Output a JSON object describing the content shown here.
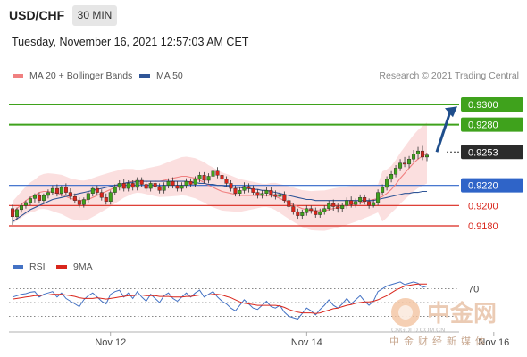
{
  "header": {
    "symbol": "USD/CHF",
    "timeframe": "30 MIN",
    "datetime": "Tuesday, November 16, 2021 12:57:03 AM CET"
  },
  "legend": {
    "items": [
      {
        "label": "MA 20 + Bollinger Bands",
        "color": "#f08080"
      },
      {
        "label": "MA 50",
        "color": "#2f5597"
      }
    ],
    "credit": "Research © 2021 Trading Central"
  },
  "rsi_legend": {
    "items": [
      {
        "label": "RSI",
        "color": "#4472c4"
      },
      {
        "label": "9MA",
        "color": "#d9261c"
      }
    ]
  },
  "watermark": {
    "big": "中金网",
    "url": "CNGOLD.COM.CN",
    "tagline": "中金财经新媒体"
  },
  "chart_data": [
    {
      "type": "candlestick",
      "ylim": [
        0.9165,
        0.9315
      ],
      "x_ticks": [
        {
          "index": 22,
          "label": "Nov 12"
        },
        {
          "index": 66,
          "label": "Nov 14"
        },
        {
          "index": 108,
          "label": "Nov 16"
        }
      ],
      "series": [
        {
          "name": "MA 20",
          "color": "#f08080"
        },
        {
          "name": "MA 50",
          "color": "#2f5597"
        }
      ],
      "ma20": [
        0.9193,
        0.9197,
        0.9201,
        0.9205,
        0.9208,
        0.921,
        0.9213,
        0.9214,
        0.9214,
        0.9213,
        0.9212,
        0.9211,
        0.9209,
        0.9207,
        0.9206,
        0.9205,
        0.9205,
        0.9206,
        0.9208,
        0.921,
        0.9212,
        0.9214,
        0.9216,
        0.9218,
        0.922,
        0.9222,
        0.9223,
        0.9224,
        0.9224,
        0.9224,
        0.9224,
        0.9224,
        0.9224,
        0.9224,
        0.9225,
        0.9226,
        0.9227,
        0.9228,
        0.9229,
        0.9229,
        0.9228,
        0.9227,
        0.9225,
        0.9223,
        0.922,
        0.9218,
        0.9216,
        0.9214,
        0.9213,
        0.9212,
        0.9211,
        0.921,
        0.921,
        0.921,
        0.921,
        0.921,
        0.921,
        0.921,
        0.921,
        0.9209,
        0.9207,
        0.9205,
        0.9203,
        0.9201,
        0.9199,
        0.9197,
        0.9196,
        0.9195,
        0.9195,
        0.9195,
        0.9195,
        0.9196,
        0.9197,
        0.9198,
        0.9199,
        0.92,
        0.9201,
        0.9202,
        0.9203,
        0.9204,
        0.9205,
        0.9206,
        0.9207,
        0.9209,
        0.9212,
        0.9216,
        0.9221,
        0.9227,
        0.9232,
        0.9237,
        0.9242,
        0.9246,
        0.9249,
        0.9252
      ],
      "ma50": [
        0.9184,
        0.9187,
        0.919,
        0.9193,
        0.9196,
        0.9198,
        0.92,
        0.9202,
        0.9204,
        0.9206,
        0.9207,
        0.9208,
        0.9209,
        0.921,
        0.9211,
        0.9212,
        0.9213,
        0.9214,
        0.9215,
        0.9216,
        0.9217,
        0.9218,
        0.9219,
        0.922,
        0.9221,
        0.9222,
        0.9223,
        0.9223,
        0.9224,
        0.9224,
        0.9224,
        0.9224,
        0.9224,
        0.9224,
        0.9224,
        0.9224,
        0.9224,
        0.9224,
        0.9224,
        0.9224,
        0.9223,
        0.9223,
        0.9222,
        0.9222,
        0.9221,
        0.9221,
        0.922,
        0.922,
        0.9219,
        0.9219,
        0.9218,
        0.9218,
        0.9217,
        0.9217,
        0.9216,
        0.9216,
        0.9215,
        0.9215,
        0.9214,
        0.9213,
        0.9212,
        0.9211,
        0.921,
        0.9209,
        0.9208,
        0.9207,
        0.9206,
        0.9206,
        0.9205,
        0.9205,
        0.9205,
        0.9205,
        0.9205,
        0.9205,
        0.9205,
        0.9205,
        0.9205,
        0.9205,
        0.9205,
        0.9205,
        0.9205,
        0.9205,
        0.9206,
        0.9207,
        0.9208,
        0.9209,
        0.921,
        0.9211,
        0.9212,
        0.9212,
        0.9213,
        0.9213,
        0.9214,
        0.9214
      ],
      "candles": {
        "open": [
          0.9197,
          0.9189,
          0.9196,
          0.92,
          0.9203,
          0.9207,
          0.921,
          0.9205,
          0.921,
          0.9213,
          0.9217,
          0.9212,
          0.9218,
          0.9213,
          0.9209,
          0.9205,
          0.9201,
          0.9206,
          0.9212,
          0.9217,
          0.9213,
          0.9208,
          0.9204,
          0.9213,
          0.9218,
          0.9222,
          0.9217,
          0.9222,
          0.9218,
          0.9225,
          0.9221,
          0.9217,
          0.9222,
          0.9219,
          0.9215,
          0.922,
          0.9224,
          0.922,
          0.9217,
          0.922,
          0.9224,
          0.9221,
          0.9226,
          0.923,
          0.9225,
          0.9229,
          0.9234,
          0.923,
          0.9226,
          0.9222,
          0.9217,
          0.9212,
          0.9215,
          0.9219,
          0.9217,
          0.9213,
          0.921,
          0.9212,
          0.9215,
          0.9211,
          0.9209,
          0.9211,
          0.9205,
          0.9199,
          0.9194,
          0.919,
          0.9193,
          0.9197,
          0.9195,
          0.9191,
          0.9194,
          0.9197,
          0.9202,
          0.9199,
          0.9197,
          0.92,
          0.9205,
          0.9201,
          0.9204,
          0.9208,
          0.9204,
          0.92,
          0.9203,
          0.9213,
          0.9218,
          0.9226,
          0.9231,
          0.9237,
          0.9242,
          0.9241,
          0.9246,
          0.9251,
          0.9254,
          0.9248
        ],
        "high": [
          0.9201,
          0.9198,
          0.9202,
          0.9205,
          0.9209,
          0.9212,
          0.9213,
          0.9212,
          0.9216,
          0.922,
          0.9221,
          0.922,
          0.9222,
          0.9217,
          0.9212,
          0.9208,
          0.9208,
          0.9214,
          0.9219,
          0.922,
          0.9216,
          0.9212,
          0.9215,
          0.9221,
          0.9225,
          0.9226,
          0.9225,
          0.9225,
          0.9228,
          0.9228,
          0.9224,
          0.9224,
          0.9225,
          0.9222,
          0.9223,
          0.9227,
          0.9228,
          0.9224,
          0.9223,
          0.9227,
          0.9227,
          0.9229,
          0.9233,
          0.9233,
          0.9232,
          0.9237,
          0.9238,
          0.9234,
          0.9229,
          0.9225,
          0.922,
          0.9218,
          0.9223,
          0.9222,
          0.922,
          0.9216,
          0.9215,
          0.9218,
          0.9218,
          0.9215,
          0.9215,
          0.9214,
          0.9208,
          0.9202,
          0.9197,
          0.9196,
          0.92,
          0.92,
          0.9198,
          0.9197,
          0.92,
          0.9205,
          0.9206,
          0.9202,
          0.9203,
          0.9208,
          0.9209,
          0.9207,
          0.9211,
          0.9211,
          0.9207,
          0.9206,
          0.9216,
          0.9221,
          0.9229,
          0.9234,
          0.924,
          0.9246,
          0.9248,
          0.9249,
          0.9255,
          0.9258,
          0.9259,
          0.9252
        ],
        "low": [
          0.9181,
          0.9186,
          0.9193,
          0.9197,
          0.92,
          0.9203,
          0.9202,
          0.9202,
          0.9207,
          0.921,
          0.9209,
          0.9209,
          0.921,
          0.9206,
          0.9202,
          0.9198,
          0.9198,
          0.9203,
          0.9209,
          0.921,
          0.9205,
          0.9201,
          0.9201,
          0.921,
          0.9215,
          0.9214,
          0.9214,
          0.9215,
          0.9215,
          0.9218,
          0.9214,
          0.9214,
          0.9216,
          0.9212,
          0.9212,
          0.9217,
          0.9217,
          0.9214,
          0.9214,
          0.9217,
          0.9218,
          0.9218,
          0.9223,
          0.9222,
          0.9222,
          0.9226,
          0.9227,
          0.9223,
          0.9219,
          0.9214,
          0.9209,
          0.9209,
          0.9212,
          0.9213,
          0.921,
          0.9207,
          0.9207,
          0.9209,
          0.9208,
          0.9206,
          0.9205,
          0.9202,
          0.9196,
          0.9191,
          0.9187,
          0.9187,
          0.919,
          0.9192,
          0.9188,
          0.9188,
          0.9191,
          0.9195,
          0.9195,
          0.9193,
          0.9194,
          0.9197,
          0.9198,
          0.9198,
          0.9201,
          0.9201,
          0.9197,
          0.9198,
          0.92,
          0.921,
          0.9215,
          0.9223,
          0.9228,
          0.9234,
          0.9238,
          0.9237,
          0.9243,
          0.9246,
          0.9245,
          0.9244
        ],
        "close": [
          0.9189,
          0.9196,
          0.92,
          0.9203,
          0.9207,
          0.921,
          0.9205,
          0.921,
          0.9213,
          0.9217,
          0.9212,
          0.9218,
          0.9213,
          0.9209,
          0.9205,
          0.9201,
          0.9206,
          0.9212,
          0.9217,
          0.9213,
          0.9208,
          0.9204,
          0.9213,
          0.9218,
          0.9222,
          0.9217,
          0.9222,
          0.9218,
          0.9225,
          0.9221,
          0.9217,
          0.9222,
          0.9219,
          0.9215,
          0.922,
          0.9224,
          0.922,
          0.9217,
          0.922,
          0.9224,
          0.9221,
          0.9226,
          0.923,
          0.9225,
          0.9229,
          0.9234,
          0.923,
          0.9226,
          0.9222,
          0.9217,
          0.9212,
          0.9215,
          0.9219,
          0.9217,
          0.9213,
          0.921,
          0.9212,
          0.9215,
          0.9211,
          0.9209,
          0.9211,
          0.9205,
          0.9199,
          0.9194,
          0.919,
          0.9193,
          0.9197,
          0.9195,
          0.9191,
          0.9194,
          0.9197,
          0.9202,
          0.9199,
          0.9197,
          0.92,
          0.9205,
          0.9201,
          0.9204,
          0.9208,
          0.9204,
          0.92,
          0.9203,
          0.9213,
          0.9218,
          0.9226,
          0.9231,
          0.9237,
          0.9242,
          0.9241,
          0.9246,
          0.9251,
          0.9254,
          0.9248,
          0.925
        ]
      },
      "levels": [
        {
          "value": 0.93,
          "label": "0.9300",
          "kind": "resistance",
          "color": "#3fa21c"
        },
        {
          "value": 0.928,
          "label": "0.9280",
          "kind": "resistance",
          "color": "#3fa21c"
        },
        {
          "value": 0.9253,
          "label": "0.9253",
          "kind": "last",
          "color": "#2b2b2b"
        },
        {
          "value": 0.922,
          "label": "0.9220",
          "kind": "pivot",
          "color": "#2f64c8"
        },
        {
          "value": 0.92,
          "label": "0.9200",
          "kind": "support",
          "color": "#d9261c"
        },
        {
          "value": 0.918,
          "label": "0.9180",
          "kind": "support",
          "color": "#d9261c"
        }
      ],
      "arrow": {
        "from_index": 94,
        "from_value": 0.9253,
        "to_value": 0.9298
      }
    },
    {
      "type": "line",
      "ylim": [
        15,
        85
      ],
      "levels": [
        {
          "value": 70,
          "label": "70"
        },
        {
          "value": 50,
          "label": ""
        },
        {
          "value": 30,
          "label": ""
        }
      ],
      "series": [
        {
          "name": "RSI",
          "color": "#4472c4",
          "values": [
            58,
            60,
            62,
            63,
            65,
            66,
            58,
            62,
            64,
            66,
            58,
            64,
            56,
            52,
            48,
            44,
            54,
            60,
            64,
            58,
            52,
            48,
            62,
            66,
            68,
            58,
            64,
            56,
            66,
            58,
            52,
            62,
            56,
            50,
            60,
            64,
            56,
            52,
            58,
            64,
            58,
            64,
            68,
            58,
            62,
            66,
            58,
            52,
            48,
            42,
            38,
            46,
            54,
            48,
            42,
            40,
            46,
            52,
            44,
            42,
            46,
            36,
            30,
            28,
            26,
            34,
            42,
            38,
            32,
            40,
            46,
            54,
            46,
            42,
            48,
            56,
            48,
            54,
            60,
            52,
            46,
            52,
            66,
            70,
            74,
            76,
            78,
            80,
            76,
            78,
            80,
            78,
            72,
            74
          ]
        },
        {
          "name": "9MA",
          "color": "#d9261c",
          "values": [
            55,
            56,
            57,
            58,
            59,
            60,
            60,
            61,
            61,
            62,
            62,
            62,
            61,
            60,
            59,
            57,
            56,
            56,
            56,
            57,
            56,
            55,
            56,
            57,
            58,
            59,
            60,
            60,
            61,
            61,
            60,
            60,
            60,
            59,
            59,
            59,
            58,
            58,
            58,
            59,
            59,
            60,
            61,
            61,
            61,
            62,
            62,
            61,
            59,
            57,
            54,
            51,
            49,
            48,
            47,
            46,
            46,
            46,
            46,
            46,
            45,
            43,
            40,
            38,
            36,
            35,
            35,
            35,
            34,
            35,
            37,
            39,
            41,
            42,
            44,
            46,
            47,
            49,
            50,
            51,
            51,
            52,
            54,
            57,
            60,
            64,
            68,
            71,
            74,
            75,
            76,
            77,
            77,
            77
          ]
        }
      ]
    }
  ]
}
